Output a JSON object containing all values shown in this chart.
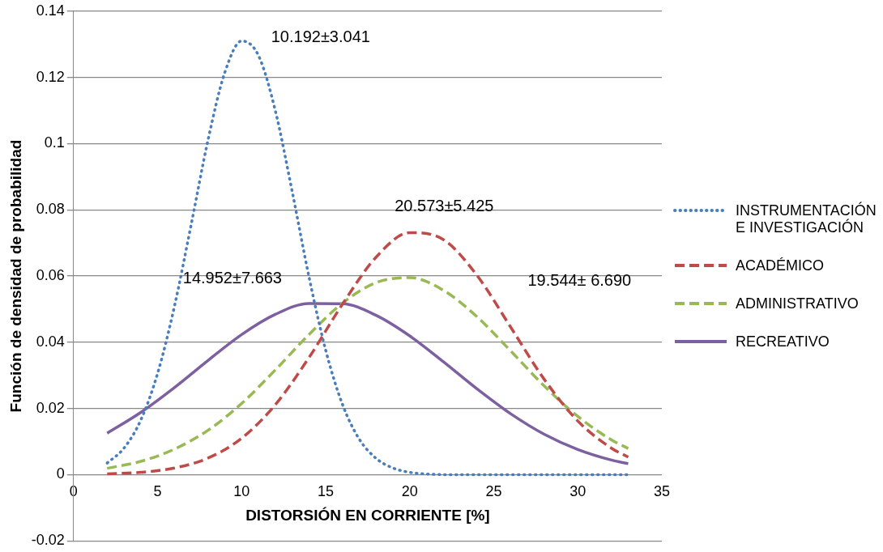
{
  "chart_data": {
    "type": "line",
    "xlabel": "DISTORSIÓN EN CORRIENTE [%]",
    "ylabel": "Función de densidad de probabilidad",
    "xlim": [
      0,
      35
    ],
    "xticks": [
      0,
      5,
      10,
      15,
      20,
      25,
      30,
      35
    ],
    "ylim": [
      -0.02,
      0.14
    ],
    "yticks": [
      -0.02,
      0,
      0.02,
      0.04,
      0.06,
      0.08,
      0.1,
      0.12,
      0.14
    ],
    "grid": "y",
    "legend": "right",
    "marker": "none",
    "series": [
      {
        "name": "INSTRUMENTACIÓN E INVESTIGACIÓN",
        "color": "#4a7ebb",
        "line_style": "dotted",
        "x": [
          2,
          3,
          4,
          5,
          6,
          7,
          8,
          9,
          10,
          11,
          12,
          13,
          14,
          15,
          16,
          17,
          18,
          19,
          20,
          21,
          22,
          23,
          24,
          25,
          26,
          27,
          28,
          29,
          30,
          31,
          32,
          33
        ],
        "values": [
          0.0035,
          0.008,
          0.0165,
          0.0306,
          0.0508,
          0.0756,
          0.1011,
          0.1215,
          0.131,
          0.1266,
          0.11,
          0.0857,
          0.0599,
          0.0376,
          0.0212,
          0.0107,
          0.0049,
          0.002,
          0.0007,
          0.0002,
          0,
          0,
          0,
          0,
          0,
          0,
          0,
          0,
          0,
          0,
          0,
          0
        ]
      },
      {
        "name": "ACADÉMICO",
        "color": "#be4b48",
        "line_style": "dashed",
        "x": [
          2,
          4,
          6,
          8,
          10,
          12,
          14,
          16,
          18,
          20,
          22,
          24,
          26,
          28,
          30,
          32,
          33
        ],
        "values": [
          0.0002,
          0.0007,
          0.002,
          0.005,
          0.011,
          0.0211,
          0.0353,
          0.0515,
          0.0657,
          0.0731,
          0.071,
          0.0602,
          0.0446,
          0.0288,
          0.0162,
          0.008,
          0.0053
        ]
      },
      {
        "name": "ADMINISTRATIVO",
        "color": "#98b954",
        "line_style": "dashed",
        "x": [
          2,
          4,
          6,
          8,
          10,
          12,
          14,
          16,
          18,
          20,
          22,
          24,
          26,
          28,
          30,
          32,
          33
        ],
        "values": [
          0.0019,
          0.004,
          0.0077,
          0.0134,
          0.0215,
          0.0316,
          0.0423,
          0.0518,
          0.058,
          0.0595,
          0.0557,
          0.0477,
          0.0374,
          0.0268,
          0.0176,
          0.0105,
          0.0079
        ]
      },
      {
        "name": "RECREATIVO",
        "color": "#7d60a0",
        "line_style": "solid",
        "x": [
          2,
          4,
          6,
          8,
          10,
          12,
          14,
          16,
          18,
          20,
          22,
          24,
          26,
          28,
          30,
          32,
          33
        ],
        "values": [
          0.0125,
          0.0188,
          0.0263,
          0.0345,
          0.0423,
          0.0484,
          0.0517,
          0.0516,
          0.0481,
          0.0419,
          0.0341,
          0.0259,
          0.0184,
          0.0122,
          0.0076,
          0.0044,
          0.0033
        ]
      }
    ],
    "annotations": [
      "10.192±3.041",
      "20.573±5.425",
      "14.952±7.663",
      "19.544± 6.690"
    ]
  }
}
